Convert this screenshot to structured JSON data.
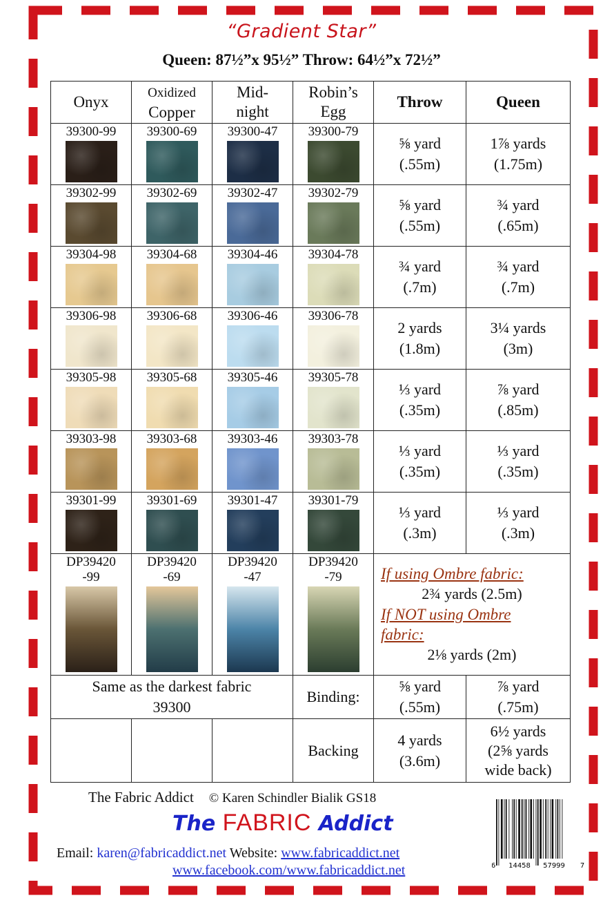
{
  "title": "“Gradient Star”",
  "sizes": "Queen: 87½”x 95½” Throw: 64½”x 72½”",
  "colors": {
    "border": "#d0141c",
    "title": "#c8141c",
    "ombre_heading": "#9a3412",
    "link": "#2030d0",
    "logo_blue": "#1a24c8"
  },
  "table": {
    "headers": {
      "onyx": "Onyx",
      "copper_1": "Oxidized",
      "copper_2": "Copper",
      "midnight_1": "Mid-",
      "midnight_2": "night",
      "robin_1": "Robin’s",
      "robin_2": "Egg",
      "throw": "Throw",
      "queen": "Queen"
    },
    "rows": [
      {
        "codes": [
          "39300-99",
          "39300-69",
          "39300-47",
          "39300-79"
        ],
        "swatches": [
          "#2a1f18",
          "#2f5a5c",
          "#1d2e46",
          "#3c4a30"
        ],
        "throw": [
          "⅝ yard",
          "(.55m)"
        ],
        "queen": [
          "1⅞ yards",
          "(1.75m)"
        ]
      },
      {
        "codes": [
          "39302-99",
          "39302-69",
          "39302-47",
          "39302-79"
        ],
        "swatches": [
          "#5a4a30",
          "#3e6468",
          "#4a6a98",
          "#6a7a5a"
        ],
        "throw": [
          "⅝ yard",
          "(.55m)"
        ],
        "queen": [
          "¾ yard",
          "(.65m)"
        ]
      },
      {
        "codes": [
          "39304-98",
          "39304-68",
          "39304-46",
          "39304-78"
        ],
        "swatches": [
          "#e6c990",
          "#e6c68e",
          "#a8cce0",
          "#dcdcb8"
        ],
        "throw": [
          "¾ yard",
          "(.7m)"
        ],
        "queen": [
          "¾ yard",
          "(.7m)"
        ]
      },
      {
        "codes": [
          "39306-98",
          "39306-68",
          "39306-46",
          "39306-78"
        ],
        "swatches": [
          "#f0e6cc",
          "#f3e6c6",
          "#bcdcef",
          "#f3f0de"
        ],
        "throw": [
          "2 yards",
          "(1.8m)"
        ],
        "queen": [
          "3¼ yards",
          "(3m)"
        ]
      },
      {
        "codes": [
          "39305-98",
          "39305-68",
          "39305-46",
          "39305-78"
        ],
        "swatches": [
          "#efdcb8",
          "#f0dcb0",
          "#a6cce6",
          "#e2e4cc"
        ],
        "throw": [
          "⅓ yard",
          "(.35m)"
        ],
        "queen": [
          "⅞ yard",
          "(.85m)"
        ]
      },
      {
        "codes": [
          "39303-98",
          "39303-68",
          "39303-46",
          "39303-78"
        ],
        "swatches": [
          "#b8945a",
          "#d4a45e",
          "#7094cc",
          "#b8bc96"
        ],
        "throw": [
          "⅓ yard",
          "(.35m)"
        ],
        "queen": [
          "⅓ yard",
          "(.35m)"
        ]
      },
      {
        "codes": [
          "39301-99",
          "39301-69",
          "39301-47",
          "39301-79"
        ],
        "swatches": [
          "#2e2218",
          "#2f4e50",
          "#233e5c",
          "#34483a"
        ],
        "throw": [
          "⅓ yard",
          "(.3m)"
        ],
        "queen": [
          "⅓ yard",
          "(.3m)"
        ]
      }
    ],
    "ombre": {
      "codes": [
        [
          "DP39420",
          "-99"
        ],
        [
          "DP39420",
          "-69"
        ],
        [
          "DP39420",
          "-47"
        ],
        [
          "DP39420",
          "-79"
        ]
      ],
      "gradients": [
        [
          "#d8c8a8",
          "#6a5638",
          "#2a2018"
        ],
        [
          "#e4c79a",
          "#4c7070",
          "#223c48"
        ],
        [
          "#d6e6ee",
          "#4c84a8",
          "#1c3850"
        ],
        [
          "#d8d6b4",
          "#6a7a58",
          "#2c3e30"
        ]
      ],
      "heading1": "If using Ombre fabric:",
      "amount1": "2¾ yards  (2.5m)",
      "heading2": "If NOT using Ombre fabric:",
      "amount2": "2⅛ yards (2m)"
    },
    "binding": {
      "note_1": "Same as the darkest fabric",
      "note_2": "39300",
      "label": "Binding:",
      "throw": [
        "⅝ yard",
        "(.55m)"
      ],
      "queen": [
        "⅞ yard",
        "(.75m)"
      ]
    },
    "backing": {
      "label": "Backing",
      "throw": [
        "4 yards",
        "(3.6m)"
      ],
      "queen": [
        "6½ yards",
        "(2⅝ yards",
        "wide back)"
      ]
    }
  },
  "footer": {
    "brand": "The Fabric Addict",
    "copyright": "© Karen Schindler Bialik  GS18",
    "logo": {
      "part1": "The",
      "part2": "FABRIC",
      "part3": "Addict"
    },
    "email_label": "Email:",
    "email": "karen@fabricaddict.net",
    "website_label": "Website:",
    "website": "www.fabricaddict.net",
    "facebook": "www.facebook.com/www.fabricaddict.net",
    "barcode_digits": [
      "6",
      "14458",
      "57999",
      "7"
    ]
  }
}
